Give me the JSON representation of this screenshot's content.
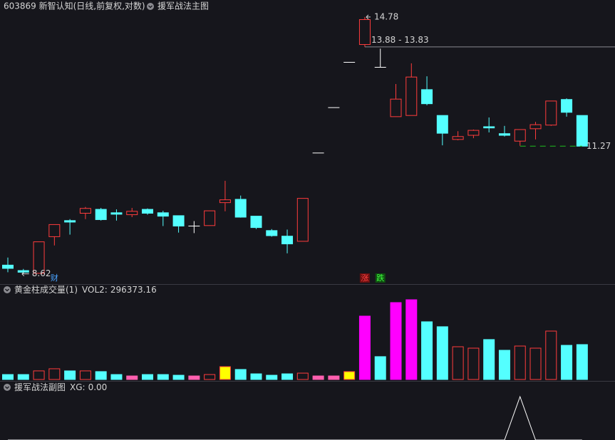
{
  "header": {
    "title": "603869 新智认知(日线,前复权,对数)",
    "indicator": "援军战法主图"
  },
  "chart_data": [
    {
      "type": "candlestick",
      "open": [
        8.78,
        8.68,
        8.63,
        9.32,
        9.64,
        9.79,
        9.87,
        9.8,
        9.76,
        9.87,
        9.8,
        9.74,
        9.53,
        9.54,
        10.01,
        10.08,
        9.73,
        9.44,
        9.33,
        9.23,
        11.11,
        12.22,
        13.44,
        13.95,
        13.3,
        11.99,
        12.02,
        12.69,
        12.02,
        11.43,
        11.53,
        11.74,
        11.57,
        11.39,
        11.69,
        11.78,
        12.43,
        12.02
      ],
      "high": [
        8.92,
        8.71,
        9.22,
        9.56,
        9.67,
        9.92,
        9.9,
        9.87,
        9.9,
        9.89,
        9.84,
        9.74,
        9.63,
        9.84,
        10.48,
        10.16,
        9.73,
        9.47,
        9.46,
        10.1,
        11.11,
        12.22,
        13.44,
        14.78,
        13.83,
        12.84,
        13.41,
        13.05,
        12.02,
        11.63,
        11.67,
        11.97,
        11.76,
        11.67,
        11.86,
        12.39,
        12.46,
        12.02
      ],
      "low": [
        8.65,
        8.62,
        8.63,
        9.15,
        9.36,
        9.67,
        9.64,
        9.64,
        9.71,
        9.76,
        9.53,
        9.4,
        9.39,
        9.54,
        9.83,
        9.7,
        9.47,
        9.32,
        9.0,
        9.23,
        11.11,
        12.22,
        13.44,
        13.88,
        13.3,
        11.99,
        12.02,
        12.28,
        11.29,
        11.41,
        11.46,
        11.6,
        11.5,
        11.28,
        11.43,
        11.76,
        11.99,
        11.27
      ],
      "close": [
        8.72,
        8.65,
        9.22,
        9.56,
        9.61,
        9.89,
        9.66,
        9.77,
        9.83,
        9.79,
        9.73,
        9.53,
        9.53,
        9.84,
        10.07,
        9.71,
        9.5,
        9.34,
        9.18,
        10.1,
        11.11,
        12.22,
        13.44,
        14.7,
        13.3,
        12.44,
        13.03,
        12.32,
        11.58,
        11.5,
        11.65,
        11.71,
        11.53,
        11.67,
        11.79,
        12.39,
        12.1,
        11.27
      ],
      "log_scale": true,
      "ylim": [
        8.45,
        14.91
      ],
      "up_color": "#ff3c3c",
      "down_color": "#54ffff",
      "flat_color": "#ffffff",
      "high_label": {
        "index": 23,
        "value": 14.78
      },
      "low_label": {
        "index": 1,
        "value": 8.62
      },
      "gap": {
        "label": "13.88 - 13.83",
        "values": [
          13.88,
          13.83
        ],
        "index": 23
      },
      "last_price": {
        "value": 11.27,
        "from_index": 33,
        "color": "#1fc01f"
      },
      "markers": [
        {
          "index": 3,
          "text": "财",
          "color": "#4aa3ff"
        },
        {
          "index": 23,
          "text": "涨",
          "color": "#ff4040",
          "background": "#6a1010"
        },
        {
          "index": 24,
          "text": "跌",
          "color": "#40ff40",
          "background": "#0f5010"
        }
      ]
    },
    {
      "type": "bar",
      "title": "黄金柱成交量(1)",
      "legend": {
        "name": "VOL2",
        "value": 296373.16
      },
      "values": [
        42000,
        42000,
        73000,
        91000,
        73000,
        73000,
        67000,
        42000,
        30000,
        42000,
        42000,
        36000,
        30000,
        42000,
        109000,
        85000,
        48000,
        36000,
        48000,
        54000,
        30000,
        30000,
        67000,
        538000,
        194000,
        653000,
        677000,
        490000,
        448000,
        278000,
        266000,
        339000,
        248000,
        284000,
        266000,
        411000,
        290000,
        296373.16
      ],
      "fills": [
        "#54ffff",
        "#54ffff",
        "none",
        "none",
        "#54ffff",
        "none",
        "#54ffff",
        "#54ffff",
        "#ff5fae",
        "#54ffff",
        "#54ffff",
        "#54ffff",
        "#ff5fae",
        "none",
        "#ffff00",
        "#54ffff",
        "#54ffff",
        "#54ffff",
        "#54ffff",
        "none",
        "#ff5fae",
        "#ff5fae",
        "#ffff00",
        "#ff00ff",
        "#54ffff",
        "#ff00ff",
        "#ff00ff",
        "#54ffff",
        "#54ffff",
        "none",
        "none",
        "#54ffff",
        "#54ffff",
        "none",
        "none",
        "none",
        "#54ffff",
        "#54ffff"
      ],
      "strokes": [
        "#54ffff",
        "#54ffff",
        "#ff3c3c",
        "#ff3c3c",
        "#54ffff",
        "#ff3c3c",
        "#54ffff",
        "#54ffff",
        "#ff5fae",
        "#54ffff",
        "#54ffff",
        "#54ffff",
        "#ff5fae",
        "#ff3c3c",
        "#ff3c3c",
        "#54ffff",
        "#54ffff",
        "#54ffff",
        "#54ffff",
        "#ff3c3c",
        "#ff5fae",
        "#ff5fae",
        "#ff3c3c",
        "#ff00ff",
        "#54ffff",
        "#ff00ff",
        "#ff00ff",
        "#54ffff",
        "#54ffff",
        "#ff3c3c",
        "#ff3c3c",
        "#54ffff",
        "#54ffff",
        "#ff3c3c",
        "#ff3c3c",
        "#ff3c3c",
        "#54ffff",
        "#54ffff"
      ],
      "ylim": [
        0,
        804000
      ]
    },
    {
      "type": "line",
      "title": "援军战法副图",
      "series": [
        {
          "name": "XG",
          "color": "#ffffff",
          "values": [
            0,
            0,
            0,
            0,
            0,
            0,
            0,
            0,
            0,
            0,
            0,
            0,
            0,
            0,
            0,
            0,
            0,
            0,
            0,
            0,
            0,
            0,
            0,
            0,
            0,
            0,
            0,
            0,
            0,
            0,
            0,
            0,
            0,
            1,
            0,
            0,
            0,
            0
          ]
        }
      ],
      "current": {
        "value": 0,
        "label": "0.00"
      },
      "ylim": [
        0,
        1.1
      ]
    }
  ]
}
